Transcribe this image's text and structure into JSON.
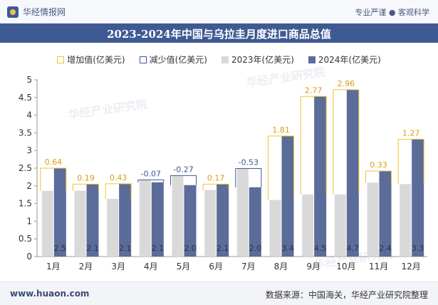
{
  "header": {
    "brand": "华经情报网",
    "tagline": "专业严谨 ● 客观科学"
  },
  "footer": {
    "website": "www.huaon.com",
    "source": "数据来源：中国海关，华经产业研究院整理"
  },
  "watermark": "华经产业研究院",
  "colors": {
    "increase": "#f2c230",
    "decrease": "#3f5a93",
    "bar2023": "#d9d9d9",
    "bar2024": "#5b6c9a",
    "titlebar": "#3f5a93"
  },
  "chart_data": {
    "type": "bar",
    "title": "2023-2024年中国与乌拉圭月度进口商品总值",
    "categories": [
      "1月",
      "2月",
      "3月",
      "4月",
      "5月",
      "6月",
      "7月",
      "8月",
      "9月",
      "10月",
      "11月",
      "12月"
    ],
    "series": [
      {
        "name": "2023年(亿美元)",
        "values": [
          1.86,
          1.86,
          1.63,
          2.17,
          2.29,
          1.88,
          2.49,
          1.6,
          1.76,
          1.76,
          2.09,
          2.05
        ]
      },
      {
        "name": "2024年(亿美元)",
        "values": [
          2.5,
          2.05,
          2.06,
          2.1,
          2.02,
          2.05,
          1.96,
          3.41,
          4.53,
          4.72,
          2.42,
          3.32
        ]
      }
    ],
    "value_labels_2024": [
      "2.5",
      "2.1",
      "2.1",
      "2.1",
      "2.0",
      "2.1",
      "2.0",
      "3.4",
      "4.5",
      "4.7",
      "2.4",
      "3.3"
    ],
    "change_labels": [
      "0.64",
      "0.19",
      "0.43",
      "-0.07",
      "-0.27",
      "0.17",
      "-0.53",
      "1.81",
      "2.77",
      "2.96",
      "0.33",
      "1.27"
    ],
    "change_direction": [
      "up",
      "up",
      "up",
      "down",
      "down",
      "up",
      "down",
      "up",
      "up",
      "up",
      "up",
      "up"
    ],
    "legend": [
      "增加值(亿美元)",
      "减少值(亿美元)",
      "2023年(亿美元)",
      "2024年(亿美元)"
    ],
    "yticks": [
      "0",
      "0.5",
      "1",
      "1.5",
      "2",
      "2.5",
      "3",
      "3.5",
      "4",
      "4.5",
      "5"
    ],
    "ylim": [
      0,
      5
    ],
    "grid": false,
    "legend_position": "top"
  }
}
